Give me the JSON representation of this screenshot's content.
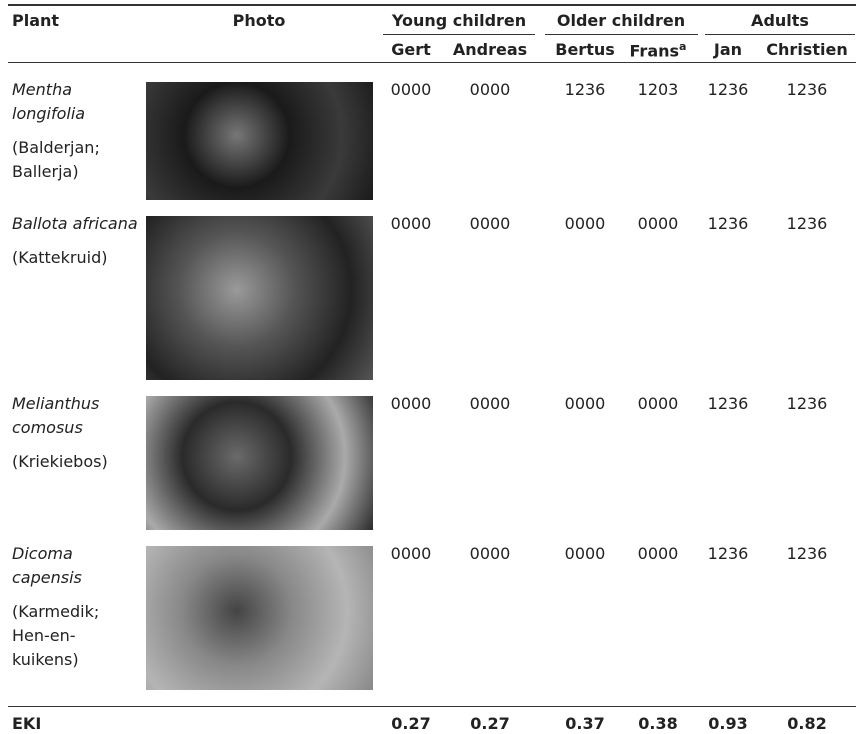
{
  "table": {
    "header": {
      "plant": "Plant",
      "photo": "Photo",
      "groups": [
        "Young children",
        "Older children",
        "Adults"
      ],
      "people": [
        "Gert",
        "Andreas",
        "Bertus",
        "Frans",
        "Jan",
        "Christien"
      ],
      "frans_note": "a"
    },
    "rows": [
      {
        "name": "Mentha longifolia",
        "common": "(Balderjan; Ballerja)",
        "codes": [
          "0000",
          "0000",
          "1236",
          "1203",
          "1236",
          "1236"
        ]
      },
      {
        "name": "Ballota africana",
        "common": "(Kattekruid)",
        "codes": [
          "0000",
          "0000",
          "0000",
          "0000",
          "1236",
          "1236"
        ]
      },
      {
        "name": "Melianthus comosus",
        "common": "(Kriekiebos)",
        "codes": [
          "0000",
          "0000",
          "0000",
          "0000",
          "1236",
          "1236"
        ]
      },
      {
        "name": "Dicoma capensis",
        "common": "(Karmedik; Hen-en-kuikens)",
        "codes": [
          "0000",
          "0000",
          "0000",
          "0000",
          "1236",
          "1236"
        ]
      }
    ],
    "footer": {
      "label": "EKI",
      "values": [
        "0.27",
        "0.27",
        "0.37",
        "0.38",
        "0.93",
        "0.82"
      ]
    }
  }
}
